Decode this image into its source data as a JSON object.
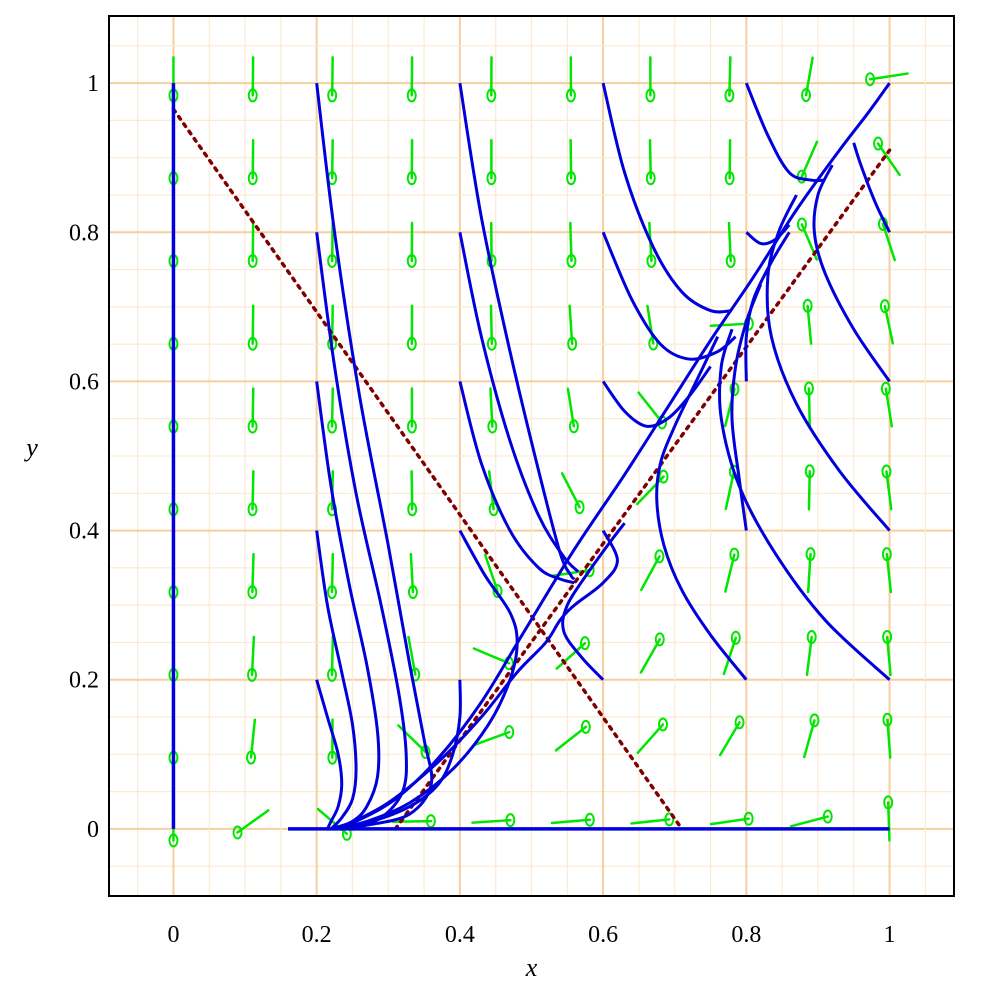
{
  "chart_data": {
    "type": "phase-portrait",
    "xlabel": "x",
    "ylabel": "y",
    "xlim": [
      -0.09,
      1.09
    ],
    "ylim": [
      -0.09,
      1.09
    ],
    "grid": true,
    "x_ticks": [
      {
        "value": 0,
        "label": "0"
      },
      {
        "value": 0.2,
        "label": "0.2"
      },
      {
        "value": 0.4,
        "label": "0.4"
      },
      {
        "value": 0.6,
        "label": "0.6"
      },
      {
        "value": 0.8,
        "label": "0.8"
      },
      {
        "value": 1,
        "label": "1"
      }
    ],
    "y_ticks": [
      {
        "value": 0,
        "label": "0"
      },
      {
        "value": 0.2,
        "label": "0.2"
      },
      {
        "value": 0.4,
        "label": "0.4"
      },
      {
        "value": 0.6,
        "label": "0.6"
      },
      {
        "value": 0.8,
        "label": "0.8"
      },
      {
        "value": 1,
        "label": "1"
      }
    ],
    "colors": {
      "trajectory": "#0000dd",
      "direction_field": "#00e600",
      "nullcline": "#800000",
      "major_grid": "#f6cf9e",
      "minor_grid": "#fbe9d6",
      "frame": "#000000"
    },
    "nullclines": [
      {
        "style": "dotted",
        "points": [
          [
            0,
            0.965
          ],
          [
            0.71,
            0
          ]
        ]
      },
      {
        "style": "dotted",
        "points": [
          [
            0.31,
            0
          ],
          [
            1.0,
            0.91
          ]
        ]
      }
    ],
    "equilibria": [
      [
        0,
        0
      ],
      [
        1,
        1
      ],
      [
        0.2,
        0
      ]
    ],
    "axis_trajectories": [
      [
        [
          0,
          1.0
        ],
        [
          0,
          0
        ]
      ],
      [
        [
          0.16,
          0
        ],
        [
          1.0,
          0
        ]
      ]
    ],
    "trajectories": [
      [
        [
          0.2,
          1.0
        ],
        [
          0.225,
          0.8
        ],
        [
          0.26,
          0.58
        ],
        [
          0.3,
          0.38
        ],
        [
          0.33,
          0.22
        ],
        [
          0.35,
          0.12
        ],
        [
          0.36,
          0.06
        ],
        [
          0.33,
          0.02
        ],
        [
          0.27,
          0.005
        ],
        [
          0.22,
          0
        ]
      ],
      [
        [
          0.2,
          0.8
        ],
        [
          0.225,
          0.62
        ],
        [
          0.255,
          0.45
        ],
        [
          0.29,
          0.3
        ],
        [
          0.315,
          0.18
        ],
        [
          0.325,
          0.1
        ],
        [
          0.32,
          0.05
        ],
        [
          0.29,
          0.015
        ],
        [
          0.25,
          0.003
        ],
        [
          0.22,
          0
        ]
      ],
      [
        [
          0.2,
          0.6
        ],
        [
          0.22,
          0.46
        ],
        [
          0.245,
          0.33
        ],
        [
          0.27,
          0.22
        ],
        [
          0.285,
          0.13
        ],
        [
          0.285,
          0.07
        ],
        [
          0.27,
          0.03
        ],
        [
          0.25,
          0.01
        ],
        [
          0.22,
          0
        ]
      ],
      [
        [
          0.2,
          0.4
        ],
        [
          0.215,
          0.3
        ],
        [
          0.235,
          0.21
        ],
        [
          0.25,
          0.14
        ],
        [
          0.255,
          0.08
        ],
        [
          0.25,
          0.04
        ],
        [
          0.235,
          0.015
        ],
        [
          0.22,
          0
        ]
      ],
      [
        [
          0.2,
          0.2
        ],
        [
          0.215,
          0.15
        ],
        [
          0.23,
          0.1
        ],
        [
          0.235,
          0.06
        ],
        [
          0.23,
          0.03
        ],
        [
          0.22,
          0.01
        ],
        [
          0.215,
          0
        ]
      ],
      [
        [
          0.4,
          1.0
        ],
        [
          0.43,
          0.82
        ],
        [
          0.47,
          0.64
        ],
        [
          0.51,
          0.48
        ],
        [
          0.54,
          0.37
        ],
        [
          0.555,
          0.34
        ],
        [
          0.56,
          0.335
        ]
      ],
      [
        [
          0.4,
          0.8
        ],
        [
          0.43,
          0.66
        ],
        [
          0.47,
          0.52
        ],
        [
          0.51,
          0.42
        ],
        [
          0.545,
          0.365
        ],
        [
          0.565,
          0.345
        ]
      ],
      [
        [
          0.4,
          0.6
        ],
        [
          0.43,
          0.49
        ],
        [
          0.47,
          0.4
        ],
        [
          0.51,
          0.35
        ],
        [
          0.54,
          0.335
        ],
        [
          0.56,
          0.33
        ]
      ],
      [
        [
          0.4,
          0.4
        ],
        [
          0.435,
          0.34
        ],
        [
          0.47,
          0.29
        ],
        [
          0.48,
          0.25
        ],
        [
          0.47,
          0.2
        ],
        [
          0.44,
          0.14
        ],
        [
          0.39,
          0.08
        ],
        [
          0.33,
          0.035
        ],
        [
          0.27,
          0.01
        ],
        [
          0.22,
          0
        ]
      ],
      [
        [
          0.4,
          0.2
        ],
        [
          0.4,
          0.15
        ],
        [
          0.39,
          0.1
        ],
        [
          0.37,
          0.06
        ],
        [
          0.33,
          0.03
        ],
        [
          0.27,
          0.008
        ],
        [
          0.22,
          0
        ]
      ],
      [
        [
          0.6,
          1.0
        ],
        [
          0.63,
          0.88
        ],
        [
          0.67,
          0.78
        ],
        [
          0.71,
          0.72
        ],
        [
          0.75,
          0.695
        ],
        [
          0.78,
          0.695
        ]
      ],
      [
        [
          0.6,
          0.8
        ],
        [
          0.64,
          0.71
        ],
        [
          0.68,
          0.65
        ],
        [
          0.72,
          0.63
        ],
        [
          0.76,
          0.64
        ],
        [
          0.785,
          0.66
        ]
      ],
      [
        [
          0.6,
          0.6
        ],
        [
          0.63,
          0.56
        ],
        [
          0.66,
          0.54
        ],
        [
          0.69,
          0.55
        ],
        [
          0.72,
          0.58
        ],
        [
          0.75,
          0.62
        ]
      ],
      [
        [
          0.6,
          0.4
        ],
        [
          0.62,
          0.36
        ],
        [
          0.6,
          0.33
        ],
        [
          0.56,
          0.3
        ],
        [
          0.54,
          0.28
        ],
        [
          0.52,
          0.25
        ],
        [
          0.48,
          0.21
        ],
        [
          0.43,
          0.15
        ],
        [
          0.37,
          0.09
        ],
        [
          0.3,
          0.035
        ],
        [
          0.24,
          0.005
        ],
        [
          0.22,
          0
        ]
      ],
      [
        [
          0.6,
          0.2
        ],
        [
          0.57,
          0.23
        ],
        [
          0.545,
          0.265
        ],
        [
          0.55,
          0.3
        ],
        [
          0.58,
          0.345
        ],
        [
          0.61,
          0.385
        ],
        [
          0.63,
          0.41
        ]
      ],
      [
        [
          0.8,
          1.0
        ],
        [
          0.83,
          0.93
        ],
        [
          0.86,
          0.88
        ],
        [
          0.89,
          0.87
        ],
        [
          0.91,
          0.87
        ]
      ],
      [
        [
          0.8,
          0.8
        ],
        [
          0.82,
          0.785
        ],
        [
          0.84,
          0.79
        ],
        [
          0.86,
          0.81
        ]
      ],
      [
        [
          0.8,
          0.6
        ],
        [
          0.8,
          0.66
        ],
        [
          0.81,
          0.71
        ],
        [
          0.835,
          0.76
        ],
        [
          0.86,
          0.8
        ]
      ],
      [
        [
          0.8,
          0.4
        ],
        [
          0.79,
          0.47
        ],
        [
          0.78,
          0.55
        ],
        [
          0.785,
          0.62
        ],
        [
          0.8,
          0.68
        ],
        [
          0.82,
          0.73
        ]
      ],
      [
        [
          0.8,
          0.2
        ],
        [
          0.75,
          0.26
        ],
        [
          0.71,
          0.32
        ],
        [
          0.685,
          0.38
        ],
        [
          0.675,
          0.44
        ],
        [
          0.68,
          0.49
        ],
        [
          0.7,
          0.54
        ],
        [
          0.73,
          0.6
        ],
        [
          0.76,
          0.66
        ]
      ],
      [
        [
          1.0,
          1.0
        ],
        [
          0.97,
          0.96
        ],
        [
          0.93,
          0.91
        ],
        [
          0.87,
          0.83
        ],
        [
          0.81,
          0.74
        ],
        [
          0.75,
          0.655
        ],
        [
          0.69,
          0.565
        ],
        [
          0.63,
          0.475
        ],
        [
          0.56,
          0.375
        ],
        [
          0.49,
          0.265
        ],
        [
          0.43,
          0.17
        ],
        [
          0.37,
          0.095
        ],
        [
          0.31,
          0.04
        ],
        [
          0.25,
          0.008
        ],
        [
          0.22,
          0
        ]
      ],
      [
        [
          1.0,
          0.8
        ],
        [
          0.98,
          0.84
        ],
        [
          0.96,
          0.89
        ],
        [
          0.95,
          0.92
        ]
      ],
      [
        [
          1.0,
          0.6
        ],
        [
          0.95,
          0.67
        ],
        [
          0.91,
          0.745
        ],
        [
          0.895,
          0.8
        ],
        [
          0.9,
          0.85
        ],
        [
          0.92,
          0.89
        ]
      ],
      [
        [
          1.0,
          0.4
        ],
        [
          0.93,
          0.48
        ],
        [
          0.87,
          0.57
        ],
        [
          0.835,
          0.66
        ],
        [
          0.83,
          0.74
        ],
        [
          0.845,
          0.8
        ],
        [
          0.87,
          0.85
        ]
      ],
      [
        [
          1.0,
          0.2
        ],
        [
          0.91,
          0.28
        ],
        [
          0.84,
          0.37
        ],
        [
          0.79,
          0.46
        ],
        [
          0.765,
          0.55
        ],
        [
          0.765,
          0.62
        ],
        [
          0.78,
          0.67
        ]
      ]
    ]
  }
}
